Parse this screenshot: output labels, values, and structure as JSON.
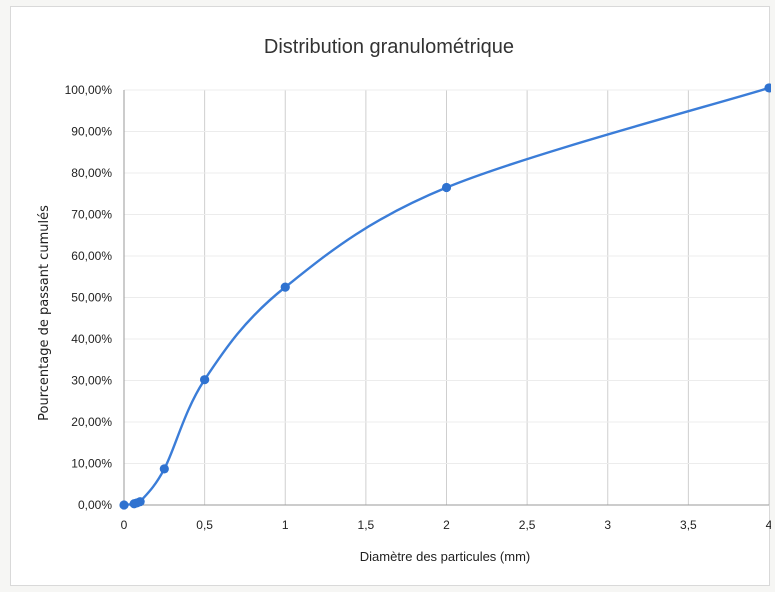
{
  "chart_data": {
    "type": "scatter",
    "title": "Distribution granulométrique",
    "xlabel": "Diamètre des particules (mm)",
    "ylabel": "Pourcentage de passant cumulés",
    "xlim": [
      0,
      4
    ],
    "ylim": [
      0,
      100
    ],
    "x_ticks": [
      0,
      0.5,
      1,
      1.5,
      2,
      2.5,
      3,
      3.5,
      4
    ],
    "x_tick_labels": [
      "0",
      "0,5",
      "1",
      "1,5",
      "2",
      "2,5",
      "3",
      "3,5",
      "4"
    ],
    "y_ticks": [
      0,
      10,
      20,
      30,
      40,
      50,
      60,
      70,
      80,
      90,
      100
    ],
    "y_tick_labels": [
      "0,00%",
      "10,00%",
      "20,00%",
      "30,00%",
      "40,00%",
      "50,00%",
      "60,00%",
      "70,00%",
      "80,00%",
      "90,00%",
      "100,00%"
    ],
    "grid": "vertical",
    "smooth": true,
    "series": [
      {
        "x": [
          0,
          0.063,
          0.08,
          0.1,
          0.25,
          0.5,
          1,
          2,
          4
        ],
        "y": [
          0,
          0.3,
          0.5,
          0.8,
          8.7,
          30.2,
          52.5,
          76.5,
          100.5
        ]
      }
    ],
    "colors": {
      "line": "#3b7dd8",
      "marker": "#2f72d0",
      "grid": "#cfcfcf"
    }
  }
}
